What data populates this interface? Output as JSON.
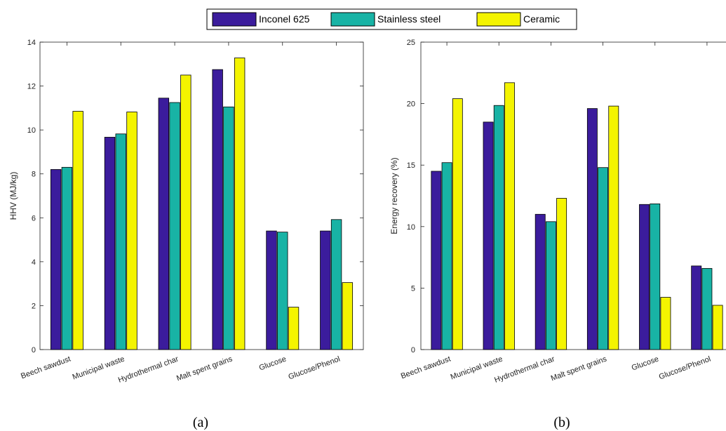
{
  "legend": {
    "entries": [
      {
        "label": "Inconel 625",
        "color": "#3b1c9c"
      },
      {
        "label": "Stainless steel",
        "color": "#18b3a5"
      },
      {
        "label": "Ceramic",
        "color": "#f4f400"
      }
    ]
  },
  "panels": [
    {
      "label": "(a)"
    },
    {
      "label": "(b)"
    }
  ],
  "chart_data": [
    {
      "type": "bar",
      "title": "",
      "xlabel": "",
      "ylabel": "HHV (MJ/kg)",
      "ylim": [
        0,
        14
      ],
      "yticks": [
        0,
        2,
        4,
        6,
        8,
        10,
        12,
        14
      ],
      "categories": [
        "Beech sawdust",
        "Municipal waste",
        "Hydrothermal char",
        "Malt spent grains",
        "Glucose",
        "Glucose/Phenol"
      ],
      "series": [
        {
          "name": "Inconel 625",
          "color": "#3b1c9c",
          "values": [
            8.2,
            9.67,
            11.45,
            12.75,
            5.4,
            5.4
          ]
        },
        {
          "name": "Stainless steel",
          "color": "#18b3a5",
          "values": [
            8.3,
            9.82,
            11.25,
            11.05,
            5.35,
            5.92
          ]
        },
        {
          "name": "Ceramic",
          "color": "#f4f400",
          "values": [
            10.85,
            10.82,
            12.5,
            13.28,
            1.93,
            3.05
          ]
        }
      ]
    },
    {
      "type": "bar",
      "title": "",
      "xlabel": "",
      "ylabel": "Energy recovery (%)",
      "ylim": [
        0,
        25
      ],
      "yticks": [
        0,
        5,
        10,
        15,
        20,
        25
      ],
      "categories": [
        "Beech sawdust",
        "Municipal waste",
        "Hydrothermal char",
        "Malt spent grains",
        "Glucose",
        "Glucose/Phenol"
      ],
      "series": [
        {
          "name": "Inconel 625",
          "color": "#3b1c9c",
          "values": [
            14.5,
            18.5,
            11.0,
            19.6,
            11.8,
            6.8
          ]
        },
        {
          "name": "Stainless steel",
          "color": "#18b3a5",
          "values": [
            15.2,
            19.85,
            10.4,
            14.8,
            11.85,
            6.6
          ]
        },
        {
          "name": "Ceramic",
          "color": "#f4f400",
          "values": [
            20.4,
            21.7,
            12.3,
            19.8,
            4.25,
            3.6
          ]
        }
      ]
    }
  ]
}
